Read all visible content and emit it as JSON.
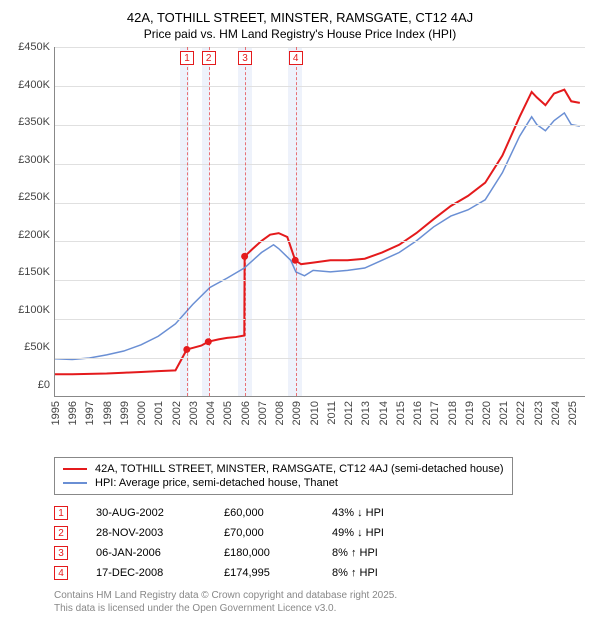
{
  "title": {
    "line1": "42A, TOTHILL STREET, MINSTER, RAMSGATE, CT12 4AJ",
    "line2": "Price paid vs. HM Land Registry's House Price Index (HPI)"
  },
  "chart": {
    "type": "line",
    "background_color": "#ffffff",
    "grid_color": "#e0e0e0",
    "axis_color": "#888888",
    "x": {
      "min": 1995,
      "max": 2025.8,
      "ticks": [
        1995,
        1996,
        1997,
        1998,
        1999,
        2000,
        2001,
        2002,
        2003,
        2004,
        2005,
        2006,
        2007,
        2008,
        2009,
        2010,
        2011,
        2012,
        2013,
        2014,
        2015,
        2016,
        2017,
        2018,
        2019,
        2020,
        2021,
        2022,
        2023,
        2024,
        2025
      ]
    },
    "y": {
      "min": 0,
      "max": 450000,
      "tick_step": 50000,
      "tick_labels": [
        "£450K",
        "£400K",
        "£350K",
        "£300K",
        "£250K",
        "£200K",
        "£150K",
        "£100K",
        "£50K",
        "£0"
      ]
    },
    "vbands": [
      {
        "from": 2002.25,
        "to": 2002.75,
        "color": "#eef2fb"
      },
      {
        "from": 2003.5,
        "to": 2004.0,
        "color": "#eef2fb"
      },
      {
        "from": 2005.6,
        "to": 2006.4,
        "color": "#eef2fb"
      },
      {
        "from": 2008.5,
        "to": 2009.35,
        "color": "#eef2fb"
      }
    ],
    "markers": [
      {
        "n": "1",
        "x": 2002.66
      },
      {
        "n": "2",
        "x": 2003.91
      },
      {
        "n": "3",
        "x": 2006.02
      },
      {
        "n": "4",
        "x": 2008.96
      }
    ],
    "series": [
      {
        "name": "property",
        "color": "#e41a1c",
        "width": 2,
        "points": [
          [
            1995,
            28000
          ],
          [
            1996,
            28000
          ],
          [
            1997,
            28500
          ],
          [
            1998,
            29000
          ],
          [
            1999,
            30000
          ],
          [
            2000,
            31000
          ],
          [
            2001,
            32000
          ],
          [
            2002,
            33000
          ],
          [
            2002.66,
            60000
          ],
          [
            2003,
            62000
          ],
          [
            2003.5,
            65000
          ],
          [
            2003.91,
            70000
          ],
          [
            2004.5,
            73000
          ],
          [
            2005,
            75000
          ],
          [
            2005.5,
            76000
          ],
          [
            2006.0,
            78000
          ],
          [
            2006.02,
            180000
          ],
          [
            2006.5,
            190000
          ],
          [
            2007,
            200000
          ],
          [
            2007.5,
            208000
          ],
          [
            2008,
            210000
          ],
          [
            2008.5,
            205000
          ],
          [
            2008.96,
            174995
          ],
          [
            2009.3,
            170000
          ],
          [
            2010,
            172000
          ],
          [
            2011,
            175000
          ],
          [
            2012,
            175000
          ],
          [
            2013,
            177000
          ],
          [
            2014,
            185000
          ],
          [
            2015,
            195000
          ],
          [
            2016,
            210000
          ],
          [
            2017,
            228000
          ],
          [
            2018,
            245000
          ],
          [
            2019,
            258000
          ],
          [
            2020,
            275000
          ],
          [
            2021,
            310000
          ],
          [
            2022,
            360000
          ],
          [
            2022.7,
            392000
          ],
          [
            2023,
            385000
          ],
          [
            2023.5,
            375000
          ],
          [
            2024,
            390000
          ],
          [
            2024.6,
            395000
          ],
          [
            2025,
            380000
          ],
          [
            2025.5,
            378000
          ]
        ],
        "sale_dots": [
          [
            2002.66,
            60000
          ],
          [
            2003.91,
            70000
          ],
          [
            2006.02,
            180000
          ],
          [
            2008.96,
            174995
          ]
        ]
      },
      {
        "name": "hpi",
        "color": "#6a8fd4",
        "width": 1.5,
        "points": [
          [
            1995,
            48000
          ],
          [
            1996,
            47000
          ],
          [
            1997,
            49000
          ],
          [
            1998,
            53000
          ],
          [
            1999,
            58000
          ],
          [
            2000,
            66000
          ],
          [
            2001,
            77000
          ],
          [
            2002,
            93000
          ],
          [
            2003,
            118000
          ],
          [
            2004,
            140000
          ],
          [
            2005,
            152000
          ],
          [
            2006,
            165000
          ],
          [
            2007,
            185000
          ],
          [
            2007.7,
            195000
          ],
          [
            2008,
            190000
          ],
          [
            2008.7,
            175000
          ],
          [
            2009,
            160000
          ],
          [
            2009.5,
            155000
          ],
          [
            2010,
            162000
          ],
          [
            2011,
            160000
          ],
          [
            2012,
            162000
          ],
          [
            2013,
            165000
          ],
          [
            2014,
            175000
          ],
          [
            2015,
            185000
          ],
          [
            2016,
            200000
          ],
          [
            2017,
            218000
          ],
          [
            2018,
            232000
          ],
          [
            2019,
            240000
          ],
          [
            2020,
            253000
          ],
          [
            2021,
            288000
          ],
          [
            2022,
            335000
          ],
          [
            2022.7,
            360000
          ],
          [
            2023,
            350000
          ],
          [
            2023.5,
            342000
          ],
          [
            2024,
            355000
          ],
          [
            2024.6,
            365000
          ],
          [
            2025,
            350000
          ],
          [
            2025.5,
            348000
          ]
        ]
      }
    ]
  },
  "legend": {
    "items": [
      {
        "color": "#e41a1c",
        "label": "42A, TOTHILL STREET, MINSTER, RAMSGATE, CT12 4AJ (semi-detached house)"
      },
      {
        "color": "#6a8fd4",
        "label": "HPI: Average price, semi-detached house, Thanet"
      }
    ]
  },
  "sales": [
    {
      "n": "1",
      "date": "30-AUG-2002",
      "price": "£60,000",
      "delta": "43% ↓ HPI"
    },
    {
      "n": "2",
      "date": "28-NOV-2003",
      "price": "£70,000",
      "delta": "49% ↓ HPI"
    },
    {
      "n": "3",
      "date": "06-JAN-2006",
      "price": "£180,000",
      "delta": "8% ↑ HPI"
    },
    {
      "n": "4",
      "date": "17-DEC-2008",
      "price": "£174,995",
      "delta": "8% ↑ HPI"
    }
  ],
  "footnote": {
    "line1": "Contains HM Land Registry data © Crown copyright and database right 2025.",
    "line2": "This data is licensed under the Open Government Licence v3.0."
  }
}
